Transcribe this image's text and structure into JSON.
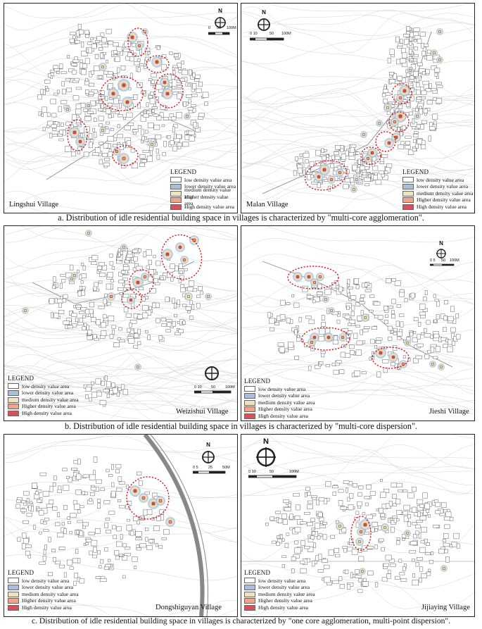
{
  "colors": {
    "low": "#ffffff",
    "lower": "#a9bfd8",
    "medium": "#ece3c0",
    "higher": "#f0a48c",
    "high": "#d8505a",
    "outline": "#d61f1f"
  },
  "legend": {
    "title": "LEGEND",
    "items": [
      {
        "label": "low density value area",
        "level": "low"
      },
      {
        "label": "lower density value area",
        "level": "lower"
      },
      {
        "label": "medium density value area",
        "level": "medium"
      },
      {
        "label": "Higher density value area",
        "level": "higher"
      },
      {
        "label": "High density value area",
        "level": "high"
      }
    ]
  },
  "north_label": "N",
  "panels": {
    "lingshui": {
      "name": "Lingshui Village",
      "scale_labels": [
        "0",
        "50",
        "100M"
      ]
    },
    "malan": {
      "name": "Malan Village",
      "scale_labels": [
        "0 10",
        "50",
        "100M"
      ]
    },
    "weizishui": {
      "name": "Weizishui Village",
      "scale_labels": [
        "0 10",
        "50",
        "100M"
      ]
    },
    "jieshi": {
      "name": "Jieshi Village",
      "scale_labels": [
        "0 5",
        "50",
        "100M"
      ]
    },
    "dongshiguyan": {
      "name": "Dongshiguyan Village",
      "scale_labels": [
        "0 5",
        "25",
        "50M"
      ]
    },
    "jijiaying": {
      "name": "Jijiaying Village",
      "scale_labels": [
        "0 10",
        "50",
        "100M"
      ]
    }
  },
  "captions": {
    "a": "a. Distribution of idle residential building space in villages is characterized by \"multi-core agglomeration\".",
    "b": "b. Distribution of idle residential building space in villages is characterized by \"multi-core dispersion\".",
    "c": "c. Distribution of idle residential building space in villages is characterized by \"one core agglomeration, multi-point dispersion\"."
  }
}
